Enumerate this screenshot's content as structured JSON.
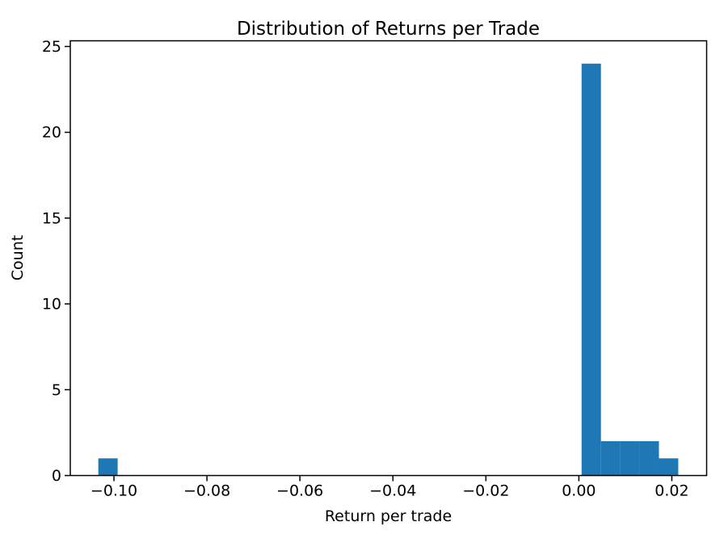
{
  "figure": {
    "background_color": "#ffffff",
    "axis_color": "#000000"
  },
  "chart_data": {
    "type": "bar",
    "subtype": "histogram",
    "title": "Distribution of Returns per Trade",
    "xlabel": "Return per trade",
    "ylabel": "Count",
    "bar_color": "#1f77b4",
    "grid": false,
    "legend": null,
    "bin_start": -0.10336,
    "bin_width": 0.004158,
    "counts": [
      1,
      0,
      0,
      0,
      0,
      0,
      0,
      0,
      0,
      0,
      0,
      0,
      0,
      0,
      0,
      0,
      0,
      0,
      0,
      0,
      0,
      0,
      0,
      0,
      0,
      24,
      2,
      2,
      2,
      1
    ],
    "xlim": [
      -0.10939,
      0.02748
    ],
    "ylim": [
      0,
      25.33
    ],
    "xticks": [
      -0.1,
      -0.08,
      -0.06,
      -0.04,
      -0.02,
      0.0,
      0.02
    ],
    "xtick_labels": [
      "−0.10",
      "−0.08",
      "−0.06",
      "−0.04",
      "−0.02",
      "0.00",
      "0.02"
    ],
    "yticks": [
      0,
      5,
      10,
      15,
      20,
      25
    ],
    "ytick_labels": [
      "0",
      "5",
      "10",
      "15",
      "20",
      "25"
    ]
  }
}
